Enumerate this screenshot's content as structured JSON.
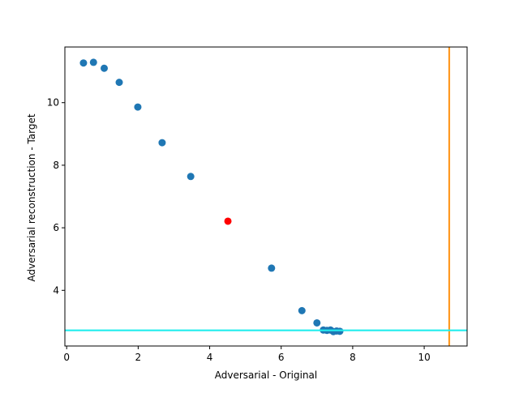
{
  "chart_data": {
    "type": "scatter",
    "title": "",
    "xlabel": "Adversarial - Original",
    "ylabel": "Adversarial reconstruction - Target",
    "xlim": [
      -0.05,
      11.2
    ],
    "ylim": [
      2.22,
      11.78
    ],
    "xticks": [
      0,
      2,
      4,
      6,
      8,
      10
    ],
    "yticks": [
      4,
      6,
      8,
      10
    ],
    "grid": false,
    "legend": "none",
    "series": [
      {
        "color": "#1f77b4",
        "marker": "circle",
        "points": [
          {
            "x": 0.47,
            "y": 11.27
          },
          {
            "x": 0.75,
            "y": 11.29
          },
          {
            "x": 1.05,
            "y": 11.1
          },
          {
            "x": 1.47,
            "y": 10.65
          },
          {
            "x": 1.99,
            "y": 9.86
          },
          {
            "x": 2.67,
            "y": 8.72
          },
          {
            "x": 3.47,
            "y": 7.64
          },
          {
            "x": 5.73,
            "y": 4.71
          },
          {
            "x": 6.58,
            "y": 3.35
          },
          {
            "x": 7.0,
            "y": 2.96
          },
          {
            "x": 7.18,
            "y": 2.73
          },
          {
            "x": 7.28,
            "y": 2.72
          },
          {
            "x": 7.38,
            "y": 2.73
          },
          {
            "x": 7.46,
            "y": 2.68
          },
          {
            "x": 7.55,
            "y": 2.7
          },
          {
            "x": 7.64,
            "y": 2.69
          }
        ]
      },
      {
        "color": "#ff0000",
        "marker": "circle",
        "points": [
          {
            "x": 4.51,
            "y": 6.21
          }
        ]
      }
    ],
    "reference_lines": [
      {
        "orientation": "vertical",
        "value": 10.7,
        "color": "#ff9922"
      },
      {
        "orientation": "horizontal",
        "value": 2.72,
        "color": "#22eeee"
      }
    ]
  }
}
